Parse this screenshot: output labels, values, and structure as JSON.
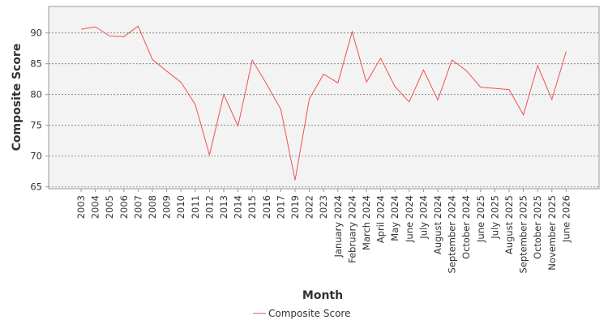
{
  "chart_data": {
    "type": "line",
    "title": "",
    "xlabel": "Month",
    "ylabel": "Composite Score",
    "categories": [
      "2003",
      "2004",
      "2005",
      "2006",
      "2007",
      "2008",
      "2009",
      "2010",
      "2011",
      "2012",
      "2013",
      "2014",
      "2015",
      "2016",
      "2017",
      "2019",
      "2022",
      "2023",
      "January 2024",
      "February 2024",
      "March 2024",
      "April 2024",
      "May 2024",
      "June 2024",
      "July 2024",
      "August 2024",
      "September 2024",
      "October 2024",
      "June 2025",
      "July 2025",
      "August 2025",
      "September 2025",
      "October 2025",
      "November 2025",
      "June 2026"
    ],
    "series": [
      {
        "name": "Composite Score",
        "color": "#f05050",
        "values": [
          90.6,
          91.0,
          89.5,
          89.4,
          91.1,
          85.7,
          83.8,
          82.0,
          78.4,
          70.2,
          80.0,
          74.9,
          85.6,
          81.7,
          77.6,
          66.1,
          79.3,
          83.3,
          81.9,
          90.2,
          82.0,
          85.9,
          81.3,
          78.8,
          84.0,
          79.1,
          85.6,
          83.9,
          81.2,
          81.0,
          80.8,
          76.7,
          84.7,
          79.2,
          87.0
        ]
      }
    ],
    "yticks": [
      65,
      70,
      75,
      80,
      85,
      90
    ],
    "ylim": [
      64.7,
      94.3
    ],
    "grid": true,
    "legend": "bottom-center"
  }
}
